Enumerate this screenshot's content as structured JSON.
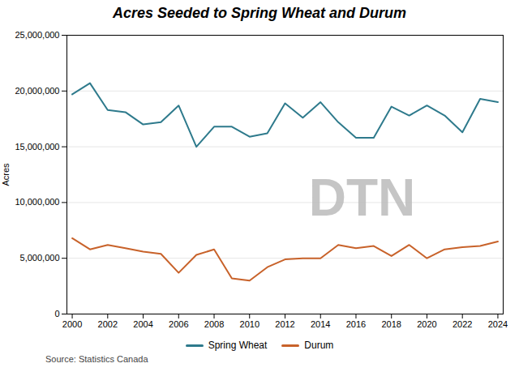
{
  "chart_data": {
    "type": "line",
    "title": "Acres Seeded to Spring Wheat and Durum",
    "ylabel": "Acres",
    "source": "Source: Statistics Canada",
    "annotations": [
      "DTN"
    ],
    "x": [
      2000,
      2001,
      2002,
      2003,
      2004,
      2005,
      2006,
      2007,
      2008,
      2009,
      2010,
      2011,
      2012,
      2013,
      2014,
      2015,
      2016,
      2017,
      2018,
      2019,
      2020,
      2021,
      2022,
      2023,
      2024
    ],
    "series": [
      {
        "name": "Spring Wheat",
        "color": "#2E7A8C",
        "values": [
          19700000,
          20700000,
          18300000,
          18100000,
          17000000,
          17200000,
          18700000,
          15000000,
          16800000,
          16800000,
          15900000,
          16200000,
          18900000,
          17600000,
          19000000,
          17200000,
          15800000,
          15800000,
          18600000,
          17800000,
          18700000,
          17800000,
          16300000,
          19300000,
          19000000
        ]
      },
      {
        "name": "Durum",
        "color": "#C8622A",
        "values": [
          6800000,
          5800000,
          6200000,
          5900000,
          5600000,
          5400000,
          3700000,
          5300000,
          5800000,
          3200000,
          3000000,
          4200000,
          4900000,
          5000000,
          5000000,
          6200000,
          5900000,
          6100000,
          5200000,
          6200000,
          5000000,
          5800000,
          6000000,
          6100000,
          6500000
        ]
      }
    ],
    "xlim": [
      1999.7,
      2024.3
    ],
    "xticks": [
      2000,
      2002,
      2004,
      2006,
      2008,
      2010,
      2012,
      2014,
      2016,
      2018,
      2020,
      2022,
      2024
    ],
    "ylim": [
      0,
      25000000
    ],
    "yticks": [
      0,
      {
        "value": 5000000,
        "label": "5,000,000"
      },
      {
        "value": 10000000,
        "label": "10,000,000"
      },
      {
        "value": 15000000,
        "label": "15,000,000"
      },
      {
        "value": 20000000,
        "label": "20,000,000"
      },
      {
        "value": 25000000,
        "label": "25,000,000"
      }
    ],
    "grid": "y",
    "legend": "bottom"
  }
}
